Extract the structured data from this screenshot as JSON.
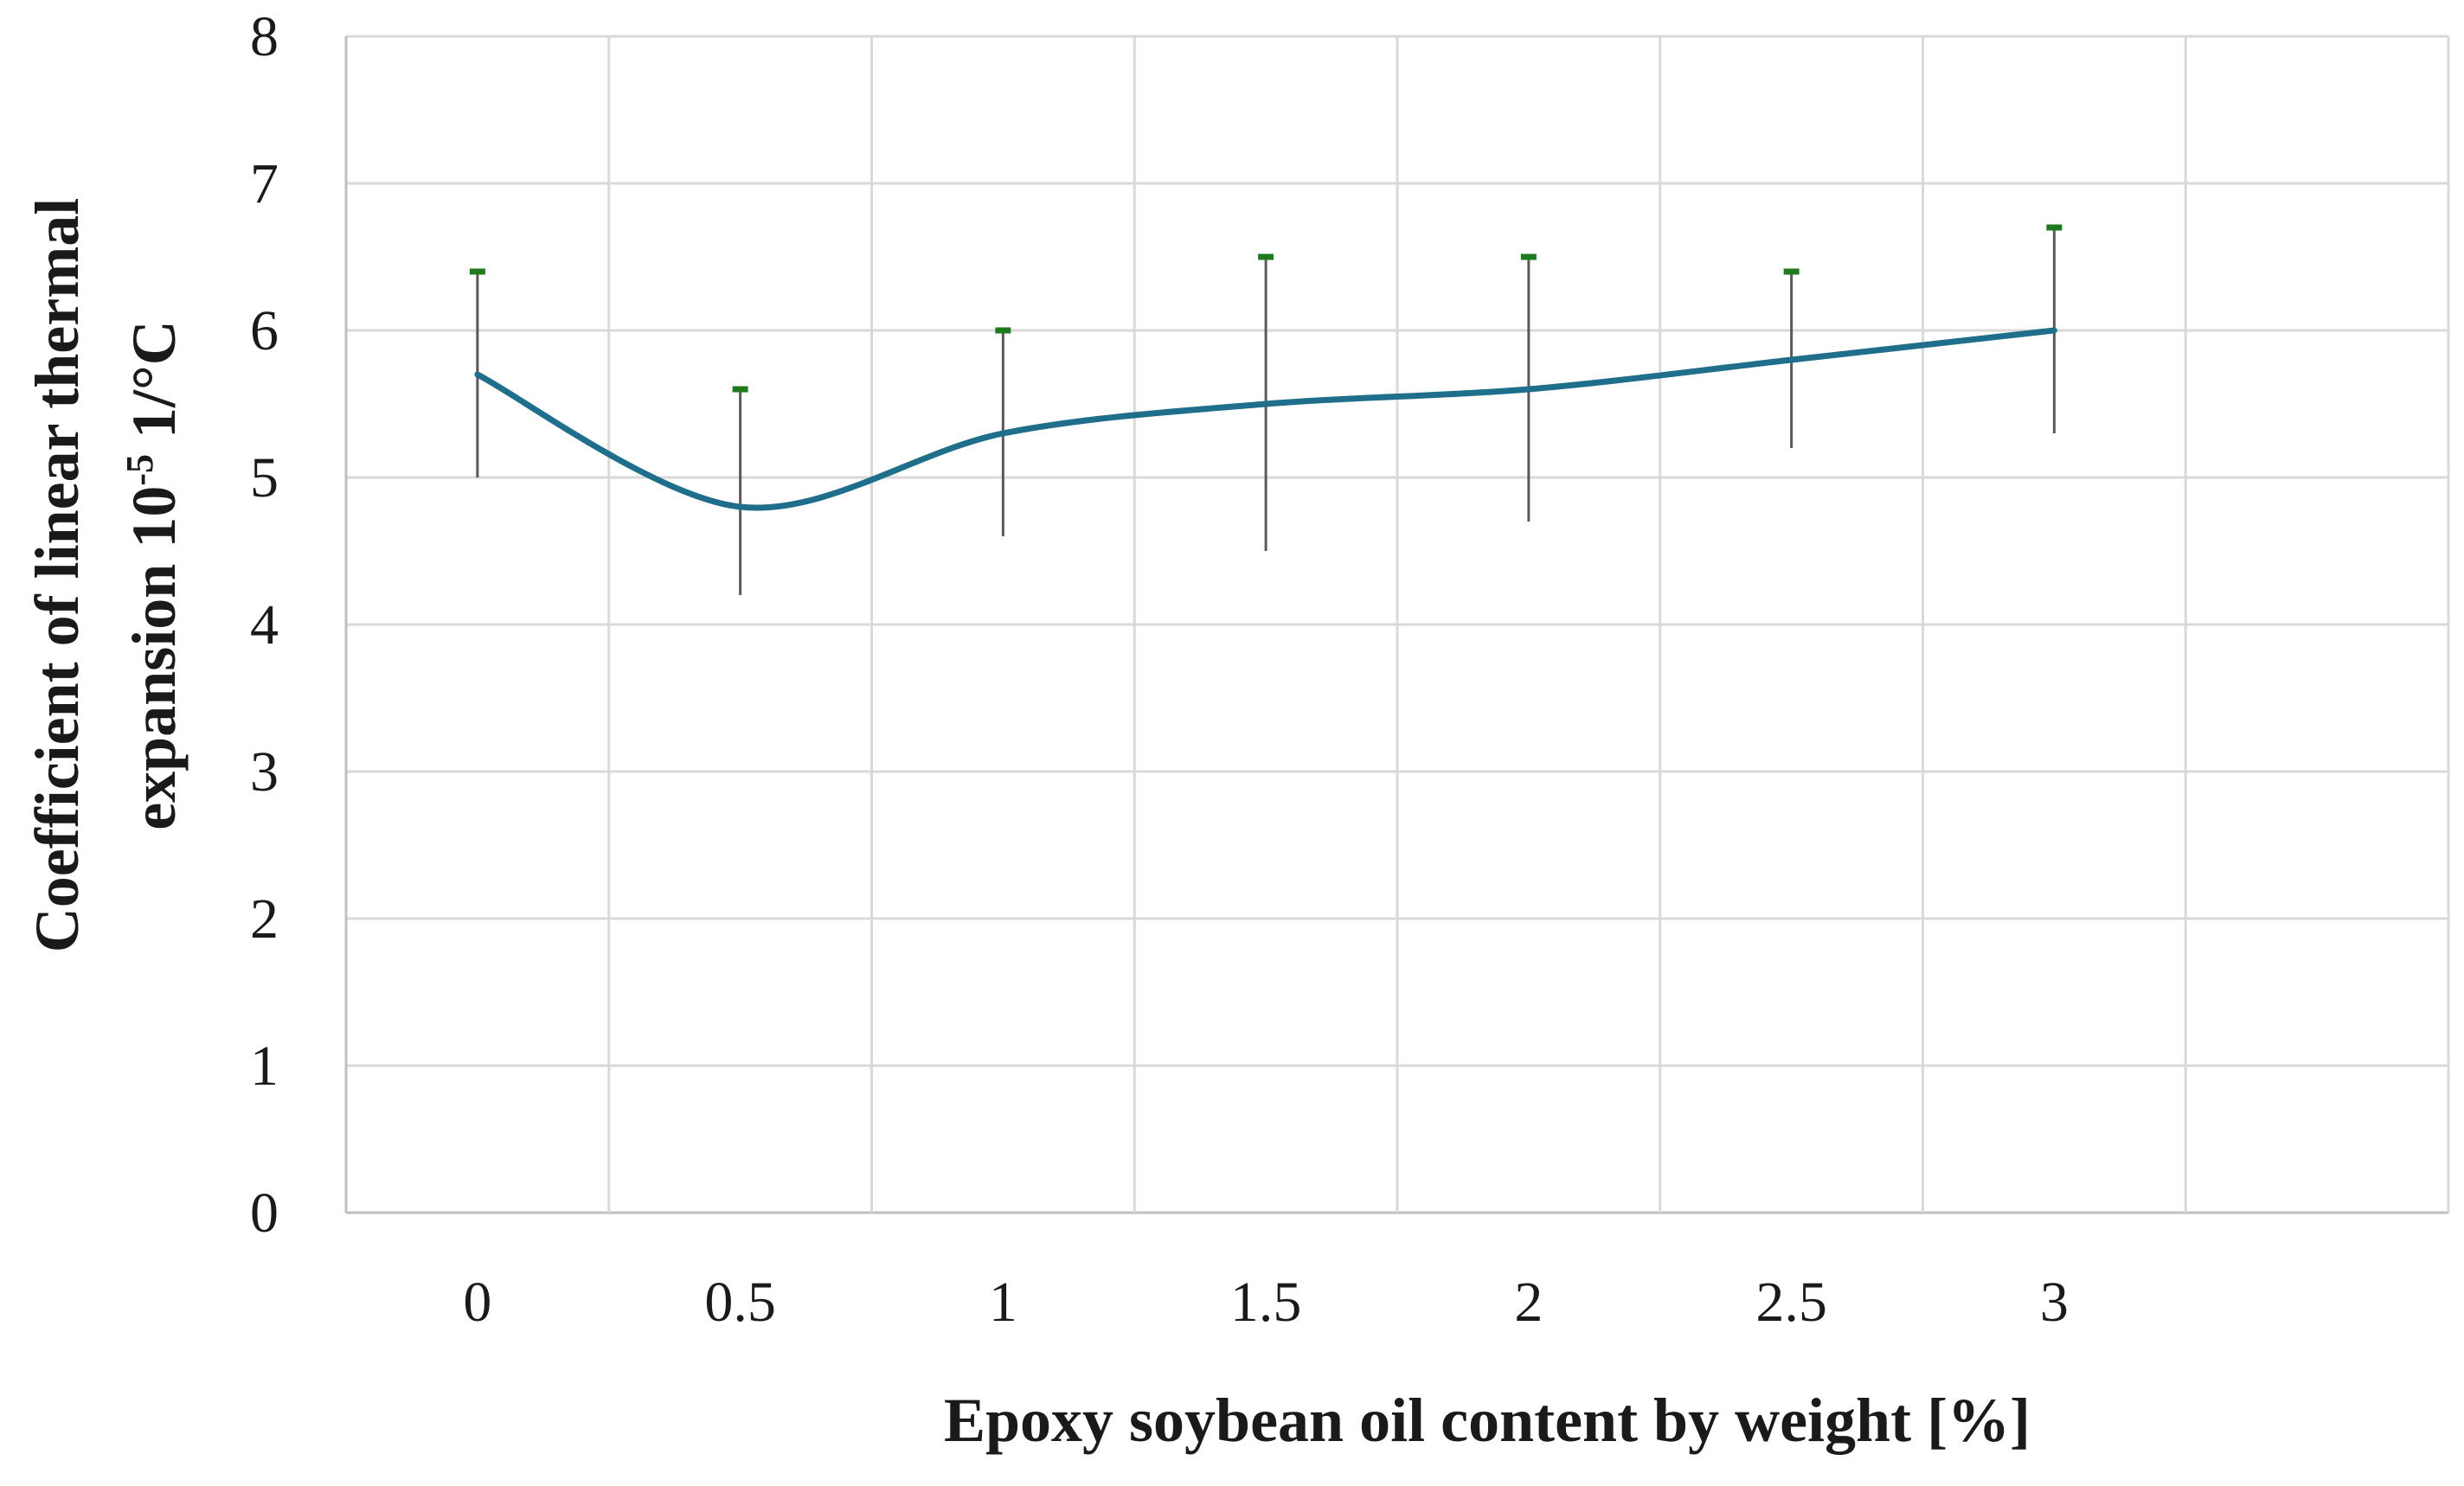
{
  "chart_data": {
    "type": "line",
    "title": "",
    "xlabel": "Epoxy soybean oil content by weight [%]",
    "ylabel": {
      "line1": "Coefficient of linear thermal",
      "line2_prefix": "expansion 10",
      "line2_sup": "-5",
      "line2_suffix": " 1/°C"
    },
    "categories": [
      "0",
      "0.5",
      "1",
      "1.5",
      "2",
      "2.5",
      "3"
    ],
    "y_ticks": [
      "0",
      "1",
      "2",
      "3",
      "4",
      "5",
      "6",
      "7",
      "8"
    ],
    "ylim": [
      0,
      8
    ],
    "grid": true,
    "smoothed": true,
    "series": [
      {
        "values": [
          5.7,
          4.8,
          5.3,
          5.5,
          5.6,
          5.8,
          6.0
        ],
        "error_upper": [
          6.4,
          5.6,
          6.0,
          6.5,
          6.5,
          6.4,
          6.7
        ],
        "error_lower": [
          5.0,
          4.2,
          4.6,
          4.5,
          4.7,
          5.2,
          5.3
        ],
        "color": "#1f6e8c"
      }
    ],
    "colors": {
      "grid": "#d9d9d9",
      "error_bar": "#595959",
      "error_cap": "#1f7a1f",
      "axis": "#bfbfbf"
    }
  }
}
